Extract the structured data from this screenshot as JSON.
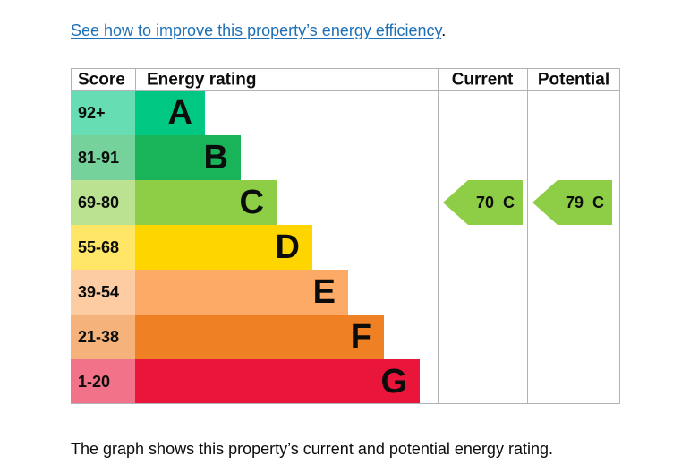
{
  "intro": {
    "link_text": "See how to improve this property’s energy efficiency",
    "trailing": "."
  },
  "chart_data": {
    "type": "table",
    "headers": {
      "score": "Score",
      "rating": "Energy rating",
      "current": "Current",
      "potential": "Potential"
    },
    "bands": [
      {
        "letter": "A",
        "score": "92+",
        "color": "#00c781"
      },
      {
        "letter": "B",
        "score": "81-91",
        "color": "#19b459"
      },
      {
        "letter": "C",
        "score": "69-80",
        "color": "#8dce46"
      },
      {
        "letter": "D",
        "score": "55-68",
        "color": "#ffd500"
      },
      {
        "letter": "E",
        "score": "39-54",
        "color": "#fcaa65"
      },
      {
        "letter": "F",
        "score": "21-38",
        "color": "#ef8023"
      },
      {
        "letter": "G",
        "score": "1-20",
        "color": "#e9153b"
      }
    ],
    "current": {
      "value": 70,
      "letter": "C",
      "label": "70  C",
      "color": "#8dce46"
    },
    "potential": {
      "value": 79,
      "letter": "C",
      "label": "79  C",
      "color": "#8dce46"
    }
  },
  "footer": {
    "text": "The graph shows this property’s current and potential energy rating."
  }
}
